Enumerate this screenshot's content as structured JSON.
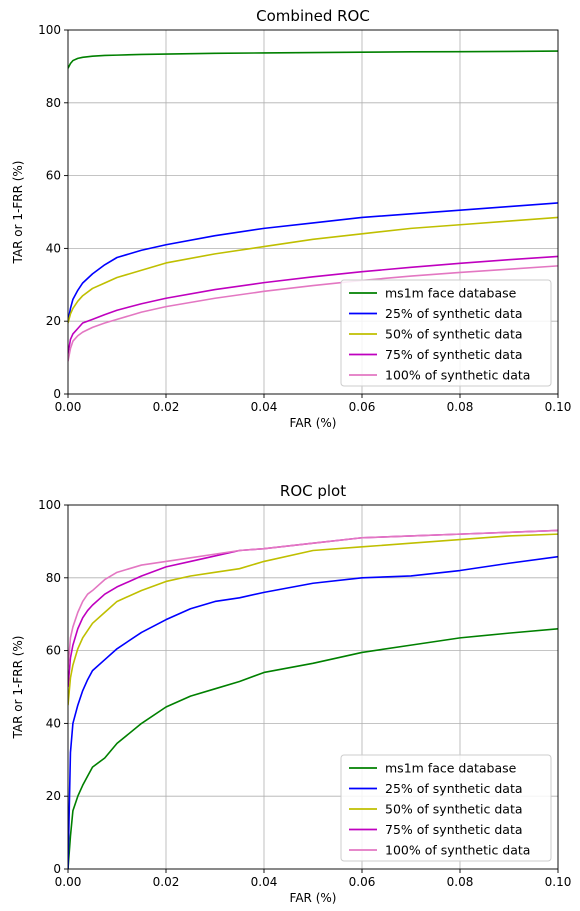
{
  "chart_data": [
    {
      "type": "line",
      "title": "Combined ROC",
      "xlabel": "FAR (%)",
      "ylabel": "TAR or 1-FRR (%)",
      "xlim": [
        0,
        0.1
      ],
      "ylim": [
        0,
        100
      ],
      "xticks": [
        0.0,
        0.02,
        0.04,
        0.06,
        0.08,
        0.1
      ],
      "xtick_labels": [
        "0.00",
        "0.02",
        "0.04",
        "0.06",
        "0.08",
        "0.10"
      ],
      "yticks": [
        0,
        20,
        40,
        60,
        80,
        100
      ],
      "ytick_labels": [
        "0",
        "20",
        "40",
        "60",
        "80",
        "100"
      ],
      "grid": true,
      "legend_position": "bottom-right",
      "x": [
        0,
        0.0005,
        0.001,
        0.002,
        0.003,
        0.005,
        0.0075,
        0.01,
        0.015,
        0.02,
        0.03,
        0.04,
        0.05,
        0.06,
        0.07,
        0.08,
        0.09,
        0.1
      ],
      "series": [
        {
          "name": "ms1m face database",
          "color": "#008000",
          "values": [
            89.5,
            90.8,
            91.6,
            92.2,
            92.5,
            92.8,
            93.0,
            93.1,
            93.3,
            93.4,
            93.6,
            93.7,
            93.8,
            93.9,
            94.0,
            94.05,
            94.1,
            94.2
          ]
        },
        {
          "name": "25% of synthetic data",
          "color": "#0000ff",
          "values": [
            20.0,
            23.5,
            26.0,
            28.5,
            30.5,
            33.0,
            35.5,
            37.5,
            39.5,
            41.0,
            43.5,
            45.5,
            47.0,
            48.5,
            49.5,
            50.5,
            51.5,
            52.5
          ]
        },
        {
          "name": "50% of synthetic data",
          "color": "#bfbf00",
          "values": [
            19.5,
            22.0,
            23.5,
            25.5,
            27.0,
            29.0,
            30.5,
            32.0,
            34.0,
            36.0,
            38.5,
            40.5,
            42.5,
            44.0,
            45.5,
            46.5,
            47.5,
            48.5
          ]
        },
        {
          "name": "75% of synthetic data",
          "color": "#bf00bf",
          "values": [
            11.0,
            15.0,
            16.5,
            18.0,
            19.5,
            20.5,
            21.8,
            23.0,
            24.8,
            26.3,
            28.7,
            30.6,
            32.2,
            33.6,
            34.8,
            35.9,
            36.9,
            37.8
          ]
        },
        {
          "name": "100% of synthetic data",
          "color": "#e377c2",
          "values": [
            9.0,
            12.5,
            14.5,
            16.0,
            17.0,
            18.3,
            19.5,
            20.5,
            22.5,
            24.0,
            26.3,
            28.2,
            29.8,
            31.2,
            32.4,
            33.4,
            34.3,
            35.2
          ]
        }
      ]
    },
    {
      "type": "line",
      "title": "ROC plot",
      "xlabel": "FAR (%)",
      "ylabel": "TAR or 1-FRR (%)",
      "xlim": [
        0,
        0.1
      ],
      "ylim": [
        0,
        100
      ],
      "xticks": [
        0.0,
        0.02,
        0.04,
        0.06,
        0.08,
        0.1
      ],
      "xtick_labels": [
        "0.00",
        "0.02",
        "0.04",
        "0.06",
        "0.08",
        "0.10"
      ],
      "yticks": [
        0,
        20,
        40,
        60,
        80,
        100
      ],
      "ytick_labels": [
        "0",
        "20",
        "40",
        "60",
        "80",
        "100"
      ],
      "grid": true,
      "legend_position": "bottom-right",
      "x": [
        0,
        0.0005,
        0.001,
        0.002,
        0.003,
        0.004,
        0.005,
        0.0075,
        0.01,
        0.015,
        0.02,
        0.025,
        0.03,
        0.035,
        0.04,
        0.05,
        0.06,
        0.07,
        0.08,
        0.09,
        0.1
      ],
      "series": [
        {
          "name": "ms1m face database",
          "color": "#008000",
          "values": [
            0,
            9,
            16,
            20,
            23,
            25.5,
            28,
            30.5,
            34.5,
            40,
            44.5,
            47.5,
            49.5,
            51.5,
            54,
            56.5,
            59.5,
            61.5,
            63.5,
            64.8,
            66
          ]
        },
        {
          "name": "25% of synthetic data",
          "color": "#0000ff",
          "values": [
            0,
            32,
            40,
            45,
            49,
            52,
            54.5,
            57.5,
            60.5,
            65,
            68.5,
            71.5,
            73.5,
            74.5,
            76,
            78.5,
            80,
            80.5,
            82,
            84,
            85.8
          ]
        },
        {
          "name": "50% of synthetic data",
          "color": "#bfbf00",
          "values": [
            45,
            52.5,
            56,
            60.5,
            63.5,
            65.5,
            67.5,
            70.5,
            73.5,
            76.5,
            79,
            80.5,
            81.5,
            82.5,
            84.5,
            87.5,
            88.5,
            89.5,
            90.5,
            91.5,
            92
          ]
        },
        {
          "name": "75% of synthetic data",
          "color": "#bf00bf",
          "values": [
            50,
            58,
            61.5,
            66,
            69,
            71,
            72.5,
            75.5,
            77.5,
            80.5,
            83,
            84.5,
            86,
            87.5,
            88,
            89.5,
            91,
            91.5,
            92,
            92.5,
            93
          ]
        },
        {
          "name": "100% of synthetic data",
          "color": "#e377c2",
          "values": [
            55,
            63.5,
            66.5,
            70.5,
            73.5,
            75.5,
            76.5,
            79.5,
            81.5,
            83.5,
            84.5,
            85.5,
            86.5,
            87.5,
            88,
            89.5,
            91,
            91.5,
            92,
            92.5,
            93
          ]
        }
      ]
    }
  ]
}
